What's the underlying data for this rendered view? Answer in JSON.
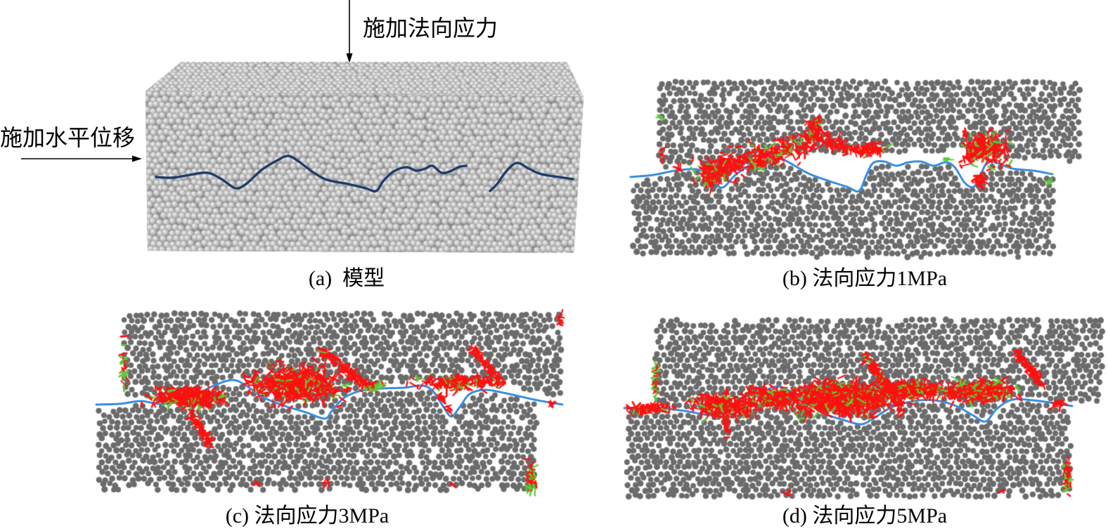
{
  "figure": {
    "normal_stress_label": "施加法向应力",
    "horizontal_displacement_label": "施加水平位移",
    "panels": [
      {
        "caption": "(a)  模型"
      },
      {
        "caption": "(b) 法向应力1MPa"
      },
      {
        "caption": "(c) 法向应力3MPa"
      },
      {
        "caption": "(d) 法向应力5MPa"
      }
    ]
  },
  "colors": {
    "particle_3d_light": "#f2f2f2",
    "particle_3d_dark": "#878787",
    "particle": "#6b6b6b",
    "joint_3d": "#1f3d6b",
    "joint": "#3b8fe0",
    "crack_red": "#ff1010",
    "crack_green": "#5ccc35"
  }
}
